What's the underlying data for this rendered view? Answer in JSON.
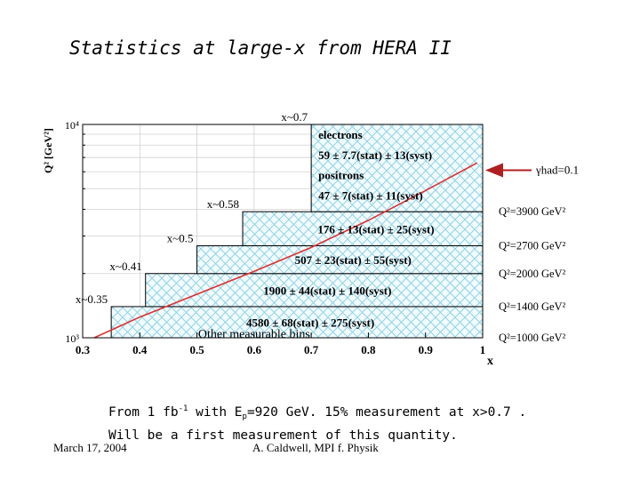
{
  "slide": {
    "title": "Statistics at large-x from HERA II",
    "caption_line1_a": "From 1 fb",
    "caption_line1_sup": "-1",
    "caption_line1_b": " with E",
    "caption_line1_sub": "p",
    "caption_line1_c": "=920 GeV.  15% measurement at x>0.7 .",
    "caption_line2": "Will be a first measurement of this quantity.",
    "footer_date": "March 17, 2004",
    "footer_author": "A. Caldwell, MPI f. Physik"
  },
  "chart_data": {
    "type": "area",
    "title": "",
    "xlabel": "x",
    "ylabel": "Q² [GeV²]",
    "xlim": [
      0.3,
      1.0
    ],
    "ylim": [
      1000,
      10000
    ],
    "yscale": "log",
    "x_ticks": [
      "0.3",
      "0.4",
      "0.5",
      "0.6",
      "0.7",
      "0.8",
      "0.9",
      "1"
    ],
    "y_ticks": [
      {
        "value": 1000,
        "label": "10³"
      },
      {
        "value": 10000,
        "label": "10⁴"
      }
    ],
    "grid": true,
    "hatch_color": "#8fd3e8",
    "boundary_color": "#e03030",
    "bins": [
      {
        "x_label": "x~0.35",
        "x_low": 0.35,
        "q2_low": 1000,
        "q2_high": 1400,
        "text": "4580 ± 68(stat) ± 275(syst)"
      },
      {
        "x_label": "x~0.41",
        "x_low": 0.41,
        "q2_low": 1400,
        "q2_high": 2000,
        "text": "1900 ± 44(stat) ± 140(syst)"
      },
      {
        "x_label": "x~0.5",
        "x_low": 0.5,
        "q2_low": 2000,
        "q2_high": 2700,
        "text": "507 ± 23(stat) ± 55(syst)"
      },
      {
        "x_label": "x~0.58",
        "x_low": 0.58,
        "q2_low": 2700,
        "q2_high": 3900,
        "text": "176 ± 13(stat) ± 25(syst)"
      },
      {
        "x_label": "x~0.7",
        "x_low": 0.7,
        "q2_low": 3900,
        "q2_high": 10000,
        "text_lines": [
          "electrons",
          "59 ± 7.7(stat) ± 13(syst)",
          "positrons",
          "47 ± 7(stat) ± 11(syst)"
        ]
      }
    ],
    "q2_boundaries": [
      {
        "value": 3900,
        "label": "Q²=3900 GeV²"
      },
      {
        "value": 2700,
        "label": "Q²=2700 GeV²"
      },
      {
        "value": 2000,
        "label": "Q²=2000 GeV²"
      },
      {
        "value": 1400,
        "label": "Q²=1400 GeV²"
      },
      {
        "value": 1000,
        "label": "Q²=1000 GeV²"
      }
    ],
    "other_bins_label": "Other measurable bins",
    "gamma_label": "γhad=0.1",
    "gamma_curve": {
      "x": [
        0.32,
        0.4,
        0.5,
        0.6,
        0.7,
        0.8,
        0.9,
        0.99
      ],
      "q2": [
        1000,
        1250,
        1600,
        2050,
        2650,
        3550,
        4900,
        6600
      ]
    }
  }
}
